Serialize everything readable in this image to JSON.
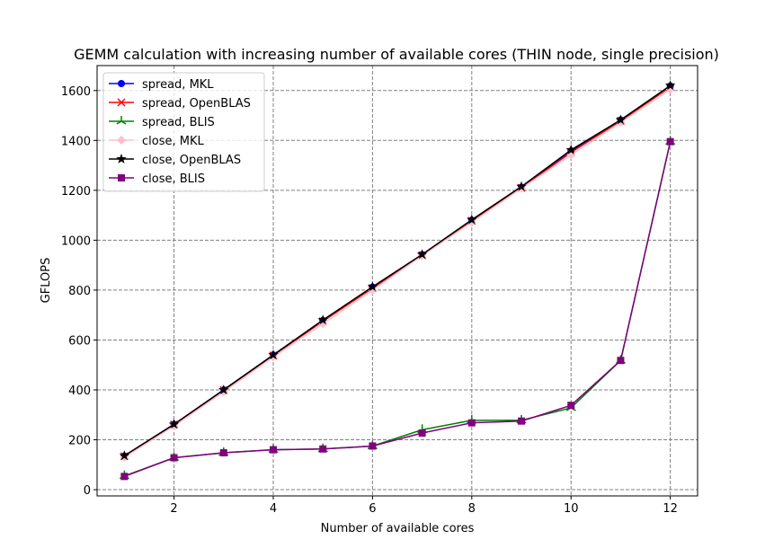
{
  "chart_data": {
    "type": "line",
    "title": "GEMM calculation with increasing number of available cores (THIN node, single precision)",
    "xlabel": "Number of available cores",
    "ylabel": "GFLOPS",
    "xlim": [
      0.45,
      12.55
    ],
    "ylim": [
      -25,
      1700
    ],
    "xticks": [
      2,
      4,
      6,
      8,
      10,
      12
    ],
    "yticks": [
      0,
      200,
      400,
      600,
      800,
      1000,
      1200,
      1400,
      1600
    ],
    "grid": true,
    "legend_position": "upper-left",
    "x": [
      1,
      2,
      3,
      4,
      5,
      6,
      7,
      8,
      9,
      10,
      11,
      12
    ],
    "series": [
      {
        "name": "spread, MKL",
        "color": "#0000ff",
        "marker": "circle",
        "values": [
          135,
          262,
          400,
          540,
          678,
          812,
          942,
          1080,
          1212,
          1358,
          1482,
          1618
        ]
      },
      {
        "name": "spread, OpenBLAS",
        "color": "#ff0000",
        "marker": "x",
        "values": [
          134,
          261,
          399,
          538,
          675,
          808,
          940,
          1078,
          1210,
          1352,
          1478,
          1614
        ]
      },
      {
        "name": "spread, BLIS",
        "color": "#008000",
        "marker": "tri",
        "values": [
          55,
          128,
          148,
          160,
          163,
          175,
          240,
          278,
          278,
          328,
          518,
          1395
        ]
      },
      {
        "name": "close, MKL",
        "color": "#ffc0cb",
        "marker": "diamond",
        "values": [
          130,
          255,
          392,
          532,
          665,
          800,
          938,
          1072,
          1208,
          1342,
          1472,
          1605
        ]
      },
      {
        "name": "close, OpenBLAS",
        "color": "#000000",
        "marker": "star",
        "values": [
          136,
          262,
          400,
          540,
          680,
          813,
          943,
          1082,
          1215,
          1362,
          1482,
          1620
        ]
      },
      {
        "name": "close, BLIS",
        "color": "#800080",
        "marker": "square",
        "values": [
          53,
          128,
          148,
          160,
          163,
          175,
          227,
          268,
          275,
          338,
          518,
          1395
        ]
      }
    ]
  }
}
